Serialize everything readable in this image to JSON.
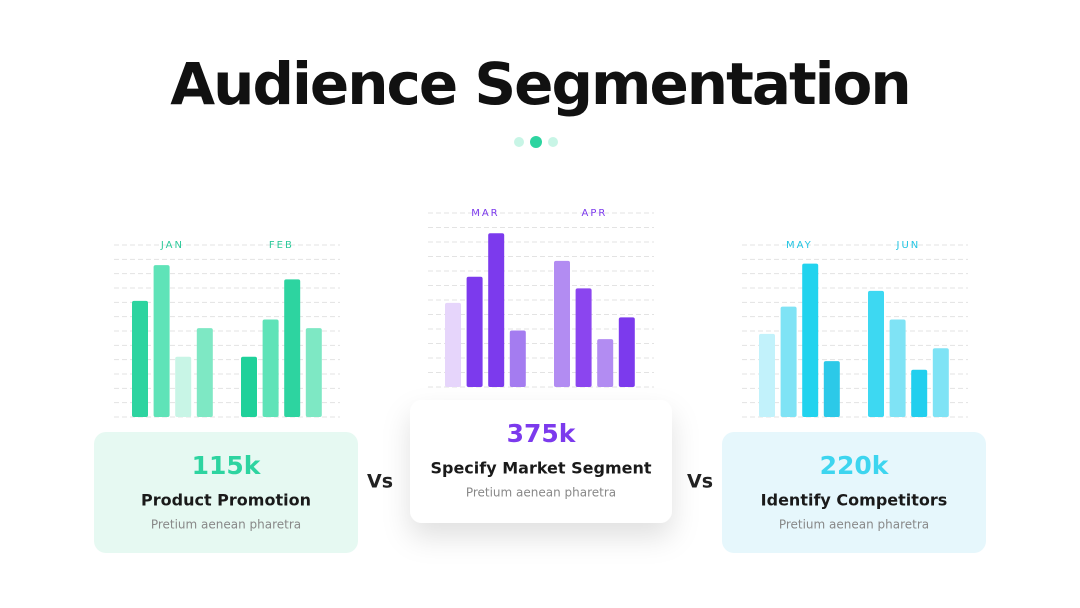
{
  "title": "Audience Segmentation",
  "chart_data": [
    {
      "type": "bar",
      "categories": [
        "JAN",
        "FEB"
      ],
      "label_color": "#2dc99a",
      "ylim": [
        0,
        12
      ],
      "yticks": [
        0,
        1,
        2,
        3,
        4,
        5,
        6,
        7,
        8,
        9,
        10,
        11,
        12
      ],
      "grid": true,
      "series": [
        {
          "colors": [
            "#2dd4a0",
            "#1fd19a"
          ],
          "values": [
            8.1,
            4.2
          ]
        },
        {
          "colors": [
            "#5fe3b8",
            "#5fe3b8"
          ],
          "values": [
            10.6,
            6.8
          ]
        },
        {
          "colors": [
            "#c8f5e6",
            "#2dd4a0"
          ],
          "values": [
            4.2,
            9.6
          ]
        },
        {
          "colors": [
            "#7ee8c4",
            "#7ee8c4"
          ],
          "values": [
            6.2,
            6.2
          ]
        }
      ],
      "card": {
        "value": "115k",
        "title": "Product Promotion",
        "subtitle": "Pretium aenean pharetra",
        "value_color": "#2dd4a0",
        "background": "#e6f9f2"
      }
    },
    {
      "type": "bar",
      "categories": [
        "MAR",
        "APR"
      ],
      "label_color": "#7c3aed",
      "ylim": [
        0,
        12
      ],
      "yticks": [
        0,
        1,
        2,
        3,
        4,
        5,
        6,
        7,
        8,
        9,
        10,
        11,
        12
      ],
      "grid": true,
      "series": [
        {
          "colors": [
            "#e6d5fb",
            "#b28cf2"
          ],
          "values": [
            5.8,
            8.7
          ]
        },
        {
          "colors": [
            "#7c3aed",
            "#8b45ef"
          ],
          "values": [
            7.6,
            6.8
          ]
        },
        {
          "colors": [
            "#7c3aed",
            "#b28cf2"
          ],
          "values": [
            10.6,
            3.3
          ]
        },
        {
          "colors": [
            "#a47cf0",
            "#7c3aed"
          ],
          "values": [
            3.9,
            4.8
          ]
        }
      ],
      "card": {
        "value": "375k",
        "title": "Specify Market Segment",
        "subtitle": "Pretium aenean pharetra",
        "value_color": "#7c3aed",
        "background": "#ffffff"
      }
    },
    {
      "type": "bar",
      "categories": [
        "MAY",
        "JUN"
      ],
      "label_color": "#22c5e3",
      "ylim": [
        0,
        12
      ],
      "yticks": [
        0,
        1,
        2,
        3,
        4,
        5,
        6,
        7,
        8,
        9,
        10,
        11,
        12
      ],
      "grid": true,
      "series": [
        {
          "colors": [
            "#c2f2fb",
            "#3dd8f2"
          ],
          "values": [
            5.8,
            8.8
          ]
        },
        {
          "colors": [
            "#7fe3f5",
            "#7fe3f5"
          ],
          "values": [
            7.7,
            6.8
          ]
        },
        {
          "colors": [
            "#22d3ee",
            "#22cfee"
          ],
          "values": [
            10.7,
            3.3
          ]
        },
        {
          "colors": [
            "#2cc9e8",
            "#7fe3f5"
          ],
          "values": [
            3.9,
            4.8
          ]
        }
      ],
      "card": {
        "value": "220k",
        "title": "Identify Competitors",
        "subtitle": "Pretium aenean pharetra",
        "value_color": "#3dd5ef",
        "background": "#e6f7fc"
      }
    }
  ],
  "separators": [
    "Vs",
    "Vs"
  ]
}
